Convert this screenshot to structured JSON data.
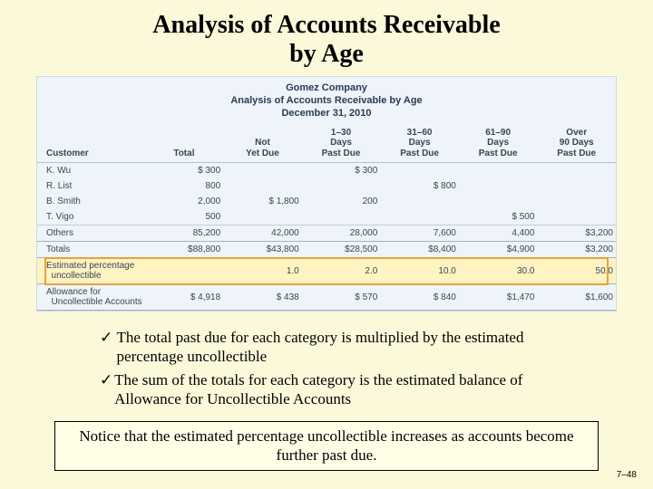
{
  "title_l1": "Analysis of Accounts Receivable",
  "title_l2": "by Age",
  "company": "Gomez Company",
  "subtitle": "Analysis of Accounts Receivable by Age",
  "date": "December 31, 2010",
  "headers": {
    "customer": "Customer",
    "total": "Total",
    "c1": "Not\nYet Due",
    "c2": "1–30\nDays\nPast Due",
    "c3": "31–60\nDays\nPast Due",
    "c4": "61–90\nDays\nPast Due",
    "c5": "Over\n90 Days\nPast Due"
  },
  "rows": [
    {
      "name": "K. Wu",
      "total": "$     300",
      "c1": "",
      "c2": "$     300",
      "c3": "",
      "c4": "",
      "c5": ""
    },
    {
      "name": "R. List",
      "total": "800",
      "c1": "",
      "c2": "",
      "c3": "$   800",
      "c4": "",
      "c5": ""
    },
    {
      "name": "B. Smith",
      "total": "2,000",
      "c1": "$  1,800",
      "c2": "200",
      "c3": "",
      "c4": "",
      "c5": ""
    },
    {
      "name": "T. Vigo",
      "total": "500",
      "c1": "",
      "c2": "",
      "c3": "",
      "c4": "$   500",
      "c5": ""
    },
    {
      "name": "Others",
      "total": "85,200",
      "c1": "42,000",
      "c2": "28,000",
      "c3": "7,600",
      "c4": "4,400",
      "c5": "$3,200"
    }
  ],
  "totals": {
    "name": "Totals",
    "total": "$88,800",
    "c1": "$43,800",
    "c2": "$28,500",
    "c3": "$8,400",
    "c4": "$4,900",
    "c5": "$3,200"
  },
  "est_label_l1": "Estimated percentage",
  "est_label_l2": "uncollectible",
  "est": {
    "c1": "1.0",
    "c2": "2.0",
    "c3": "10.0",
    "c4": "30.0",
    "c5": "50.0"
  },
  "allow_label_l1": "Allowance for",
  "allow_label_l2": "Uncollectible Accounts",
  "allow": {
    "total": "$  4,918",
    "c1": "$     438",
    "c2": "$     570",
    "c3": "$   840",
    "c4": "$1,470",
    "c5": "$1,600"
  },
  "bullet1": "The total past due for each category is multiplied by the estimated percentage uncollectible",
  "bullet2": "The sum of the totals for each category is the estimated balance of Allowance for Uncollectible Accounts",
  "notice": "Notice that the estimated percentage uncollectible increases as accounts become further past due.",
  "pagenum": "7–48",
  "highlight_border": "#e6a23c",
  "panel_bg": "#eef4f9"
}
